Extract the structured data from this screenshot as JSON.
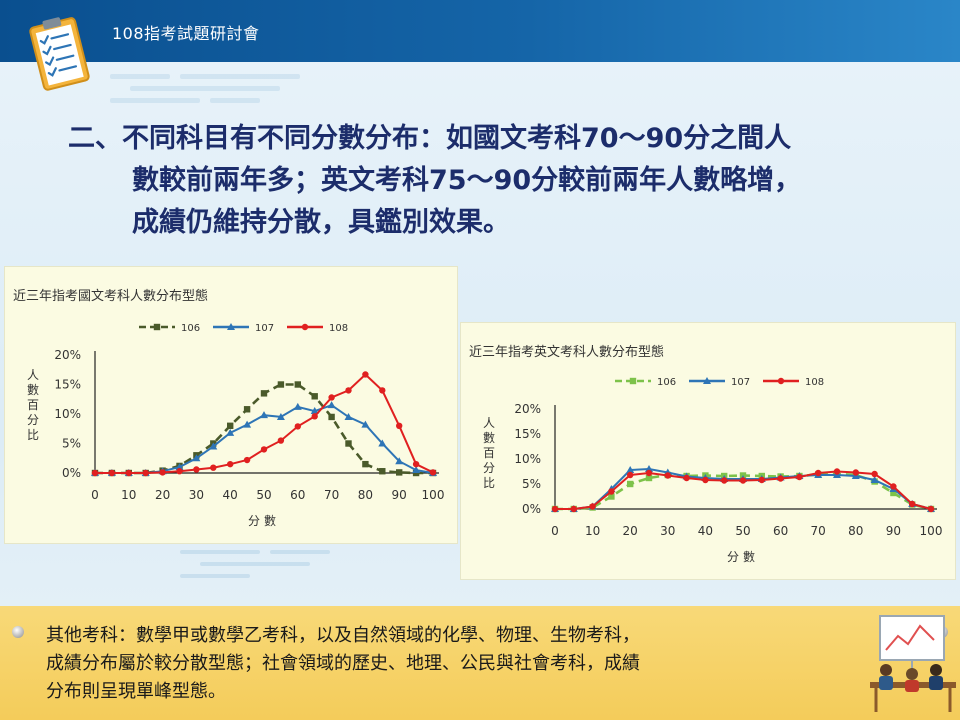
{
  "header": {
    "title": "108指考試題研討會"
  },
  "heading": {
    "lines": [
      "二、不同科目有不同分數分布：如國文考科70～90分之間人",
      "數較前兩年多；英文考科75～90分較前兩年人數略增，",
      "成績仍維持分散，具鑑別效果。"
    ]
  },
  "bottom_note": {
    "lines": [
      "其他考科：數學甲或數學乙考科，以及自然領域的化學、物理、生物考科，",
      "成績分布屬於較分散型態；社會領域的歷史、地理、公民與社會考科，成績",
      "分布則呈現單峰型態。"
    ]
  },
  "icons": {
    "header": "clipboard-checklist-icon",
    "bottom": "meeting-presentation-icon",
    "pin": "pushpin-icon"
  },
  "colors": {
    "s106_chinese": "#4a5a2a",
    "s106_english": "#7dc24a",
    "s107": "#2e75b6",
    "s108": "#e02020"
  },
  "chart_data": [
    {
      "type": "line",
      "title": "近三年指考國文考科人數分布型態",
      "xlabel": "分數",
      "ylabel": "人數百分比",
      "xticks": [
        0,
        10,
        20,
        30,
        40,
        50,
        60,
        70,
        80,
        90,
        100
      ],
      "yticks": [
        "0%",
        "5%",
        "10%",
        "15%",
        "20%"
      ],
      "xlim": [
        0,
        100
      ],
      "ylim": [
        0,
        20
      ],
      "legend": "top",
      "x": [
        0,
        5,
        10,
        15,
        20,
        25,
        30,
        35,
        40,
        45,
        50,
        55,
        60,
        65,
        70,
        75,
        80,
        85,
        90,
        95,
        100
      ],
      "series": [
        {
          "name": "106",
          "style": "dashed",
          "marker": "square",
          "color": "#4a5a2a",
          "values": [
            0,
            0,
            0,
            0,
            0.4,
            1.2,
            3.0,
            5.0,
            8.0,
            10.8,
            13.5,
            15.0,
            15.0,
            13.0,
            9.5,
            5.0,
            1.5,
            0.3,
            0.1,
            0,
            0
          ]
        },
        {
          "name": "107",
          "style": "solid",
          "marker": "triangle",
          "color": "#2e75b6",
          "values": [
            0,
            0,
            0,
            0,
            0.3,
            1.0,
            2.5,
            4.5,
            6.8,
            8.2,
            9.8,
            9.5,
            11.2,
            10.5,
            11.5,
            9.5,
            8.2,
            5.0,
            2.0,
            0.5,
            0
          ]
        },
        {
          "name": "108",
          "style": "solid",
          "marker": "circle",
          "color": "#e02020",
          "values": [
            0,
            0,
            0,
            0,
            0.1,
            0.3,
            0.6,
            0.9,
            1.5,
            2.2,
            4.0,
            5.5,
            7.9,
            9.6,
            12.8,
            14.0,
            16.7,
            14.0,
            8.0,
            1.5,
            0.1
          ]
        }
      ]
    },
    {
      "type": "line",
      "title": "近三年指考英文考科人數分布型態",
      "xlabel": "分數",
      "ylabel": "人數百分比",
      "xticks": [
        0,
        10,
        20,
        30,
        40,
        50,
        60,
        70,
        80,
        90,
        100
      ],
      "yticks": [
        "0%",
        "5%",
        "10%",
        "15%",
        "20%"
      ],
      "xlim": [
        0,
        100
      ],
      "ylim": [
        0,
        20
      ],
      "legend": "top",
      "x": [
        0,
        5,
        10,
        15,
        20,
        25,
        30,
        35,
        40,
        45,
        50,
        55,
        60,
        65,
        70,
        75,
        80,
        85,
        90,
        95,
        100
      ],
      "series": [
        {
          "name": "106",
          "style": "dashed",
          "marker": "square",
          "color": "#7dc24a",
          "values": [
            0,
            0,
            0.3,
            2.5,
            5.0,
            6.2,
            6.8,
            6.6,
            6.7,
            6.6,
            6.7,
            6.6,
            6.5,
            6.6,
            6.9,
            7.0,
            6.8,
            5.5,
            3.2,
            0.9,
            0
          ]
        },
        {
          "name": "107",
          "style": "solid",
          "marker": "triangle",
          "color": "#2e75b6",
          "values": [
            0,
            0,
            0.5,
            4.0,
            7.8,
            8.0,
            7.3,
            6.5,
            6.2,
            6.0,
            6.0,
            6.0,
            6.3,
            6.6,
            6.8,
            6.8,
            6.6,
            5.8,
            4.0,
            1.0,
            0
          ]
        },
        {
          "name": "108",
          "style": "solid",
          "marker": "circle",
          "color": "#e02020",
          "values": [
            0,
            0,
            0.5,
            3.5,
            6.8,
            7.2,
            6.7,
            6.2,
            5.8,
            5.7,
            5.7,
            5.8,
            6.1,
            6.4,
            7.2,
            7.5,
            7.3,
            7.0,
            4.5,
            1.0,
            0
          ]
        }
      ]
    }
  ]
}
